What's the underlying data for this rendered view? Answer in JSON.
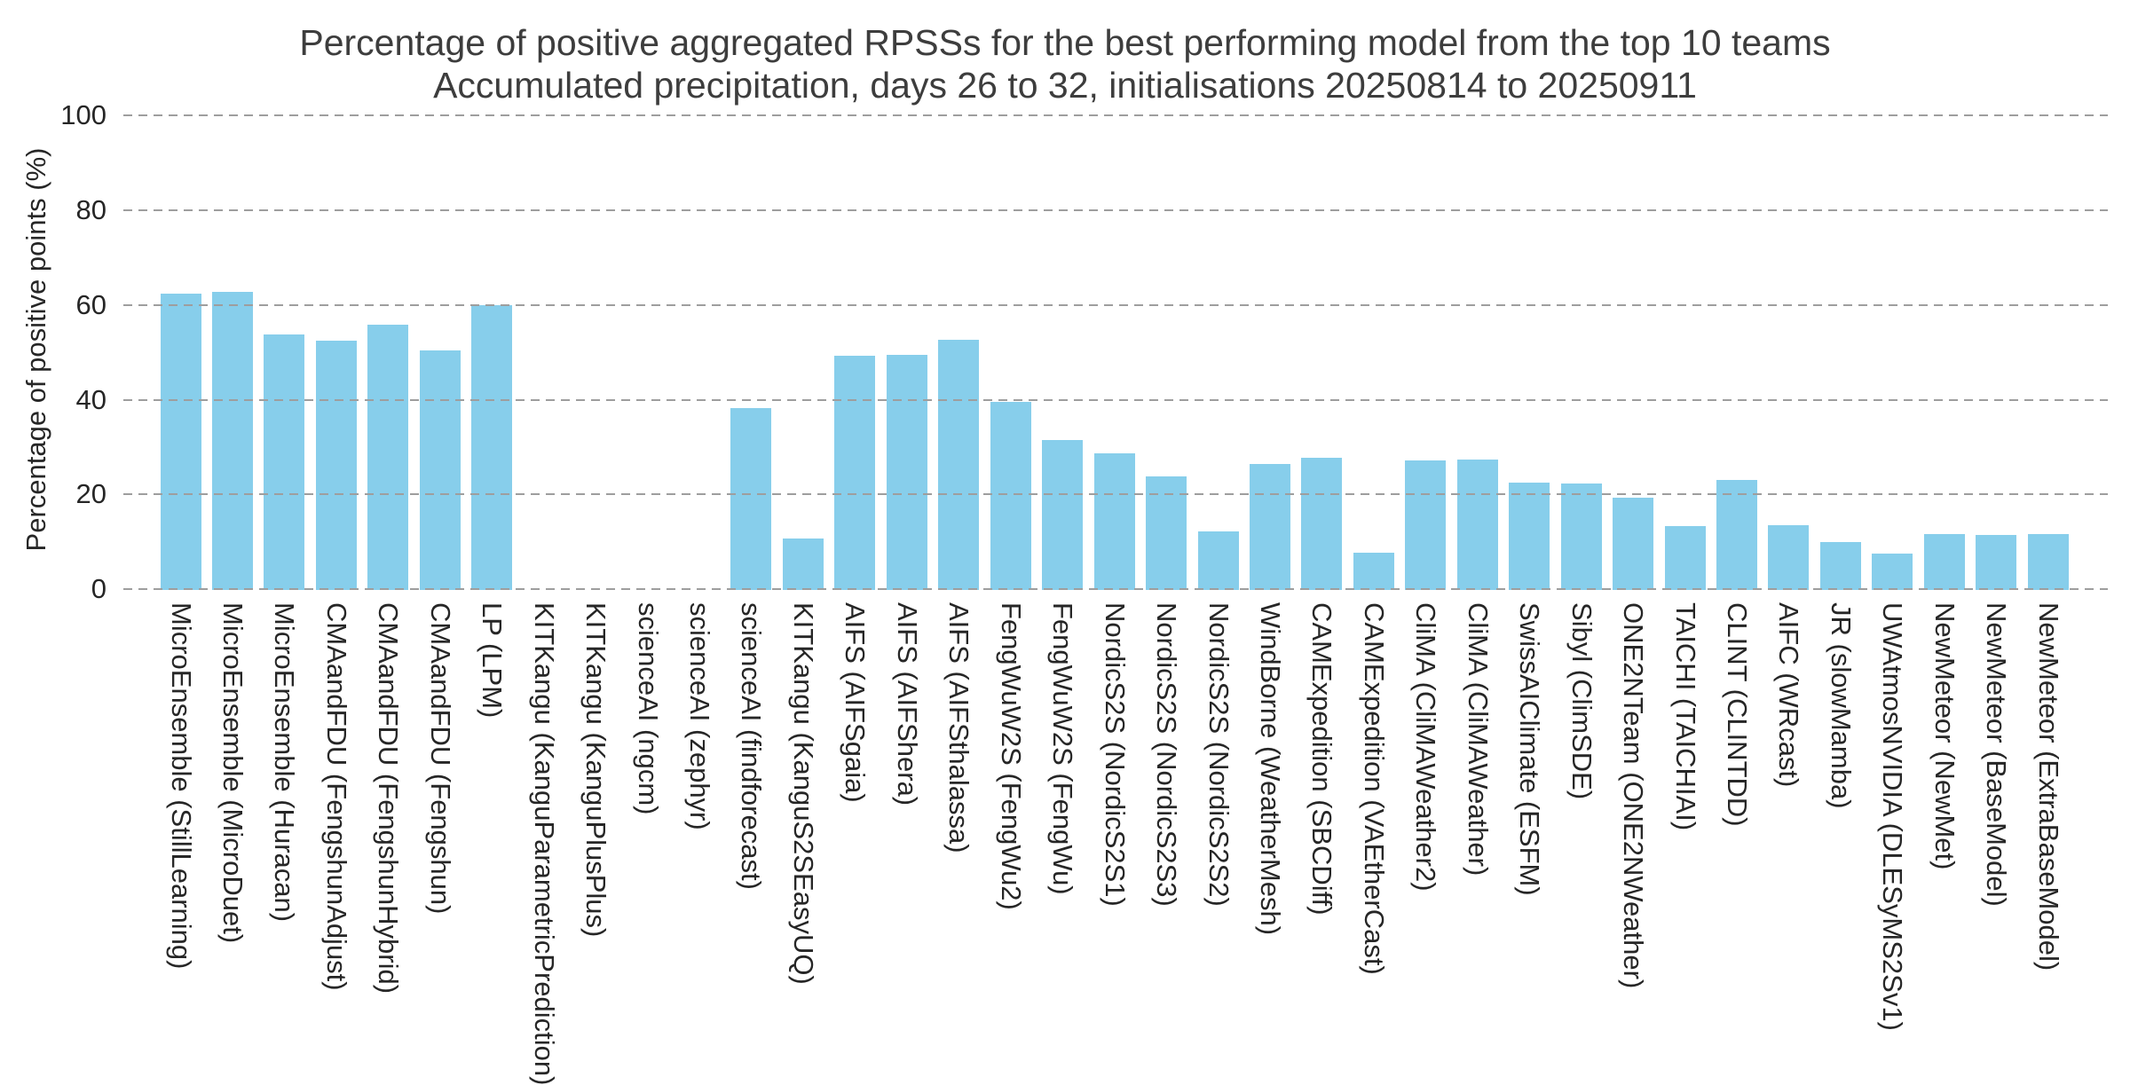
{
  "title": {
    "line1": "Percentage of positive aggregated RPSSs for the best performing model from the top 10 teams",
    "line2": "Accumulated precipitation, days 26 to 32, initialisations 20250814 to 20250911"
  },
  "y_axis": {
    "label": "Percentage of positive points (%)",
    "ticks": [
      0,
      20,
      40,
      60,
      80,
      100
    ]
  },
  "colors": {
    "bar": "#87CEEB",
    "gridline": "#9e9e9e",
    "title_text": "#3d3d3d",
    "label_text": "#262626",
    "background": "#ffffff"
  },
  "chart_data": {
    "type": "bar",
    "title": "Percentage of positive aggregated RPSSs for the best performing model from the top 10 teams",
    "subtitle": "Accumulated precipitation, days 26 to 32, initialisations 20250814 to 20250911",
    "xlabel": "",
    "ylabel": "Percentage of positive points (%)",
    "ylim": [
      0,
      100
    ],
    "yticks": [
      0,
      20,
      40,
      60,
      80,
      100
    ],
    "grid": "horizontal-dashed",
    "legend": "none",
    "bar_color": "#87CEEB",
    "categories": [
      "MicroEnsemble (StillLearning)",
      "MicroEnsemble (MicroDuet)",
      "MicroEnsemble (Huracan)",
      "CMAandFDU (FengshunAdjust)",
      "CMAandFDU (FengshunHybrid)",
      "CMAandFDU (Fengshun)",
      "LP (LPM)",
      "KITKangu (KanguParametricPrediction)",
      "KITKangu (KanguPlusPlus)",
      "scienceAI (ngcm)",
      "scienceAI (zephyr)",
      "scienceAI (findforecast)",
      "KITKangu (KanguS2SEasyUQ)",
      "AIFS (AIFSgaia)",
      "AIFS (AIFShera)",
      "AIFS (AIFSthalassa)",
      "FengWuW2S (FengWu2)",
      "FengWuW2S (FengWu)",
      "NordicS2S (NordicS2S1)",
      "NordicS2S (NordicS2S3)",
      "NordicS2S (NordicS2S2)",
      "WindBorne (WeatherMesh)",
      "CAMExpedition (SBCDiff)",
      "CAMExpedition (VAEtherCast)",
      "CliMA (CliMAWeather2)",
      "CliMA (CliMAWeather)",
      "SwissAIClimate (ESFM)",
      "Sibyl (ClimSDE)",
      "ONE2NTeam (ONE2NWeather)",
      "TAICHI (TAICHIAI)",
      "CLINT (CLINTDD)",
      "AIFC (WRcast)",
      "JR (slowMamba)",
      "UWAtmosNVIDIA (DLESyMS2Sv1)",
      "NewMeteor (NewMet)",
      "NewMeteor (BaseModel)",
      "NewMeteor (ExtraBaseModel)"
    ],
    "values": [
      62.3,
      62.5,
      53.6,
      52.2,
      55.6,
      50.2,
      59.8,
      0,
      0,
      0,
      0,
      38.1,
      10.4,
      49.1,
      49.2,
      52.4,
      39.4,
      31.2,
      28.5,
      23.7,
      11.9,
      26.3,
      27.5,
      7.5,
      27.0,
      27.2,
      22.3,
      22.1,
      19.1,
      13.1,
      22.8,
      13.3,
      9.7,
      7.4,
      11.5,
      11.3,
      11.4
    ]
  }
}
